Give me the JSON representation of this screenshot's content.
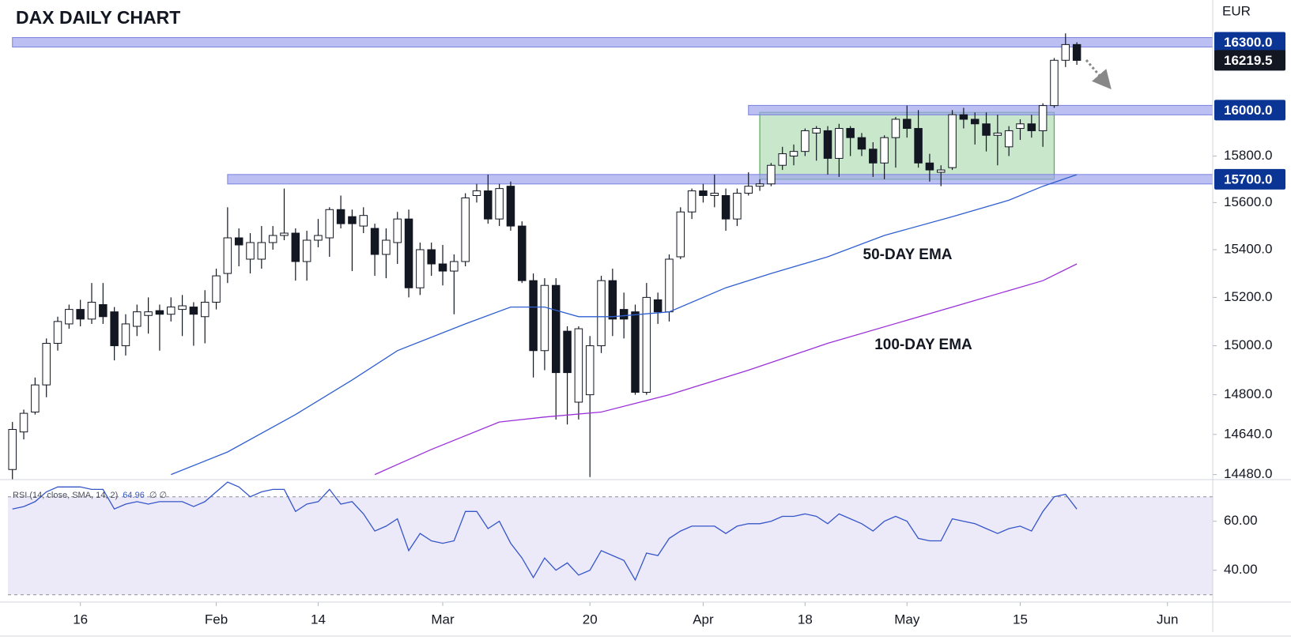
{
  "chart_data": [
    {
      "type": "candlestick",
      "title": "DAX DAILY CHART",
      "currency": "EUR",
      "log_scale": true,
      "xlim": [
        -0.4,
        106
      ],
      "xticks": [
        {
          "value": 6,
          "label": "16"
        },
        {
          "value": 18,
          "label": "Feb"
        },
        {
          "value": 27,
          "label": "14"
        },
        {
          "value": 38,
          "label": "Mar"
        },
        {
          "value": 51,
          "label": "20"
        },
        {
          "value": 61,
          "label": "Apr"
        },
        {
          "value": 70,
          "label": "18"
        },
        {
          "value": 79,
          "label": "May"
        },
        {
          "value": 89,
          "label": "15"
        },
        {
          "value": 102,
          "label": "Jun"
        }
      ],
      "ylim": [
        14460,
        16490
      ],
      "yticks": [
        {
          "value": 14480,
          "label": "14480.0"
        },
        {
          "value": 14640,
          "label": "14640.0"
        },
        {
          "value": 14800,
          "label": "14800.0"
        },
        {
          "value": 15000,
          "label": "15000.0"
        },
        {
          "value": 15200,
          "label": "15200.0"
        },
        {
          "value": 15400,
          "label": "15400.0"
        },
        {
          "value": 15600,
          "label": "15600.0"
        },
        {
          "value": 15800,
          "label": "15800.0"
        }
      ],
      "up_color": "#ffffff",
      "down_color": "#131722",
      "candles": {
        "open": [
          14500,
          14650,
          14730,
          14840,
          15010,
          15090,
          15150,
          15110,
          15170,
          15140,
          15000,
          15080,
          15125,
          15145,
          15130,
          15150,
          15160,
          15120,
          15180,
          15300,
          15450,
          15360,
          15360,
          15430,
          15460,
          15470,
          15350,
          15440,
          15450,
          15570,
          15540,
          15500,
          15490,
          15380,
          15430,
          15530,
          15240,
          15400,
          15340,
          15310,
          15350,
          15630,
          15650,
          15530,
          15670,
          15500,
          15270,
          14980,
          15250,
          15060,
          14770,
          14800,
          15000,
          15270,
          15150,
          15140,
          14810,
          15190,
          15140,
          15370,
          15560,
          15650,
          15630,
          15630,
          15530,
          15640,
          15670,
          15680,
          15760,
          15800,
          15820,
          15900,
          15910,
          15790,
          15920,
          15880,
          15830,
          15770,
          15880,
          15960,
          15920,
          15770,
          15730,
          15750,
          15980,
          15960,
          15940,
          15890,
          15840,
          15920,
          15940,
          15910,
          16020,
          16220,
          16290
        ],
        "high": [
          14690,
          14740,
          14870,
          15030,
          15120,
          15170,
          15190,
          15260,
          15260,
          15160,
          15130,
          15170,
          15200,
          15170,
          15200,
          15210,
          15180,
          15230,
          15320,
          15580,
          15490,
          15470,
          15500,
          15500,
          15660,
          15490,
          15480,
          15530,
          15580,
          15630,
          15570,
          15580,
          15510,
          15490,
          15560,
          15570,
          15430,
          15430,
          15420,
          15380,
          15640,
          15680,
          15720,
          15680,
          15690,
          15520,
          15300,
          15280,
          15280,
          15080,
          15080,
          15040,
          15290,
          15320,
          15220,
          15170,
          15260,
          15220,
          15380,
          15580,
          15660,
          15680,
          15720,
          15660,
          15660,
          15730,
          15700,
          15770,
          15840,
          15850,
          15920,
          15930,
          15930,
          15940,
          15930,
          15900,
          15860,
          15890,
          15970,
          16020,
          16000,
          15810,
          15760,
          16000,
          16010,
          15990,
          15990,
          15980,
          15930,
          15960,
          15980,
          16030,
          16230,
          16340,
          16300
        ],
        "low": [
          14460,
          14620,
          14720,
          14790,
          14980,
          15070,
          15080,
          15090,
          15090,
          14940,
          14960,
          15040,
          15050,
          14980,
          15100,
          15040,
          15000,
          15010,
          15150,
          15260,
          15330,
          15300,
          15320,
          15400,
          15440,
          15270,
          15270,
          15410,
          15370,
          15490,
          15310,
          15470,
          15290,
          15280,
          15340,
          15200,
          15210,
          15290,
          15250,
          15130,
          15330,
          15600,
          15510,
          15500,
          15480,
          15260,
          14870,
          14900,
          14700,
          14680,
          14700,
          14470,
          14970,
          15040,
          15030,
          14800,
          14800,
          15090,
          15100,
          15360,
          15530,
          15600,
          15580,
          15480,
          15500,
          15630,
          15650,
          15670,
          15740,
          15760,
          15800,
          15780,
          15720,
          15710,
          15800,
          15800,
          15710,
          15700,
          15750,
          15880,
          15750,
          15690,
          15670,
          15740,
          15920,
          15850,
          15820,
          15760,
          15800,
          15870,
          15880,
          15840,
          16010,
          16190,
          16200
        ],
        "close": [
          14660,
          14725,
          14840,
          15010,
          15100,
          15150,
          15110,
          15180,
          15120,
          15000,
          15090,
          15140,
          15140,
          15130,
          15160,
          15165,
          15130,
          15180,
          15290,
          15450,
          15420,
          15430,
          15430,
          15460,
          15470,
          15350,
          15440,
          15460,
          15570,
          15510,
          15510,
          15545,
          15380,
          15440,
          15530,
          15240,
          15400,
          15340,
          15310,
          15350,
          15620,
          15650,
          15530,
          15660,
          15500,
          15270,
          14980,
          15250,
          14890,
          14890,
          15070,
          15000,
          15270,
          15110,
          15110,
          14810,
          15200,
          15140,
          15360,
          15560,
          15650,
          15630,
          15640,
          15530,
          15640,
          15670,
          15680,
          15760,
          15810,
          15820,
          15910,
          15920,
          15790,
          15920,
          15880,
          15830,
          15770,
          15880,
          15960,
          15920,
          15770,
          15740,
          15740,
          15980,
          15960,
          15940,
          15890,
          15900,
          15910,
          15940,
          15910,
          16020,
          16220,
          16290,
          16219.5
        ]
      },
      "series": [
        {
          "name": "50-DAY EMA",
          "color": "#2f5fd0",
          "x": [
            14,
            19,
            25,
            30,
            34,
            40,
            44,
            47,
            50,
            53,
            58,
            63,
            67,
            72,
            77,
            83,
            88,
            91,
            94
          ],
          "values": [
            14480,
            14570,
            14720,
            14860,
            14980,
            15090,
            15160,
            15160,
            15120,
            15120,
            15140,
            15240,
            15300,
            15370,
            15460,
            15540,
            15610,
            15670,
            15720
          ]
        },
        {
          "name": "100-DAY EMA",
          "color": "#9b30d9",
          "x": [
            32,
            37,
            43,
            47,
            52,
            58,
            65,
            72,
            83,
            91,
            94
          ],
          "values": [
            14480,
            14580,
            14690,
            14710,
            14730,
            14800,
            14900,
            15010,
            15160,
            15270,
            15340
          ]
        }
      ],
      "levels": [
        {
          "value": 16300,
          "label": "16300.0",
          "from": 0
        },
        {
          "value": 16000,
          "label": "16000.0",
          "from": 65
        },
        {
          "value": 15700,
          "label": "15700.0",
          "from": 19
        }
      ],
      "range_box": {
        "x": [
          66,
          92
        ],
        "y": [
          15700,
          15990
        ],
        "color": "#4caf50"
      }
    },
    {
      "type": "line",
      "title": "RSI (14, close, SMA, 14, 2)",
      "flags": "∅ ∅",
      "ylim": [
        27,
        77
      ],
      "yticks": [
        {
          "value": 40,
          "label": "40.00"
        },
        {
          "value": 60,
          "label": "60.00"
        }
      ],
      "band": [
        30,
        70
      ],
      "series": [
        {
          "color": "#3556c9",
          "values": [
            65,
            66,
            68,
            72,
            74,
            74,
            74,
            73,
            73,
            65,
            67,
            68,
            67,
            68,
            68,
            68,
            66,
            68,
            72,
            76,
            74,
            70,
            72,
            73,
            73,
            64,
            67,
            68,
            73,
            67,
            68,
            63,
            56,
            58,
            61,
            48,
            55,
            52,
            51,
            52,
            64,
            64,
            57,
            60,
            51,
            45,
            37,
            45,
            40,
            43,
            38,
            40,
            48,
            46,
            44,
            36,
            47,
            46,
            53,
            56,
            58,
            58,
            58,
            55,
            58,
            59,
            59,
            60,
            62,
            62,
            63,
            62,
            59,
            63,
            61,
            59,
            56,
            60,
            62,
            60,
            53,
            52,
            52,
            61,
            60,
            59,
            57,
            55,
            57,
            58,
            56,
            64,
            70,
            71,
            64.96
          ]
        }
      ]
    }
  ]
}
